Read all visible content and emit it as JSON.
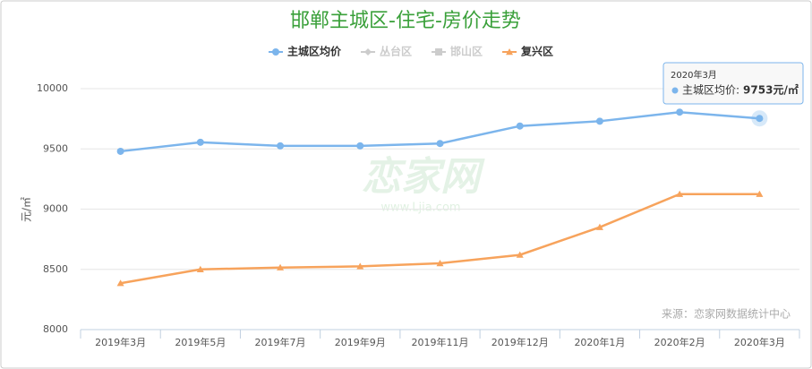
{
  "chart_data": {
    "type": "line",
    "title": "邯郸主城区-住宅-房价走势",
    "y_label": "元/㎡",
    "categories": [
      "2019年3月",
      "2019年5月",
      "2019年7月",
      "2019年9月",
      "2019年11月",
      "2019年12月",
      "2020年1月",
      "2020年2月",
      "2020年3月"
    ],
    "series": [
      {
        "name": "主城区均价",
        "color": "#7cb5ec",
        "marker": "circle",
        "visible": true,
        "values": [
          9480,
          9555,
          9525,
          9525,
          9545,
          9690,
          9730,
          9805,
          9753
        ]
      },
      {
        "name": "丛台区",
        "color": "#cccccc",
        "marker": "diamond",
        "visible": false,
        "values": [
          null,
          null,
          null,
          null,
          null,
          null,
          null,
          null,
          null
        ]
      },
      {
        "name": "邯山区",
        "color": "#cccccc",
        "marker": "square",
        "visible": false,
        "values": [
          null,
          null,
          null,
          null,
          null,
          null,
          null,
          null,
          null
        ]
      },
      {
        "name": "复兴区",
        "color": "#f7a35c",
        "marker": "triangle",
        "visible": true,
        "values": [
          8385,
          8500,
          8515,
          8525,
          8550,
          8620,
          8850,
          9125,
          9125
        ]
      }
    ],
    "ylim": [
      8000,
      10000
    ],
    "yticks": [
      8000,
      8500,
      9000,
      9500,
      10000
    ],
    "grid": true,
    "tooltip": {
      "category": "2020年3月",
      "name": "主城区均价:",
      "value": "9753元/㎡"
    },
    "watermark": "恋家网",
    "watermark_url": "www.Ljia.com",
    "source": "来源：恋家网数据统计中心"
  }
}
